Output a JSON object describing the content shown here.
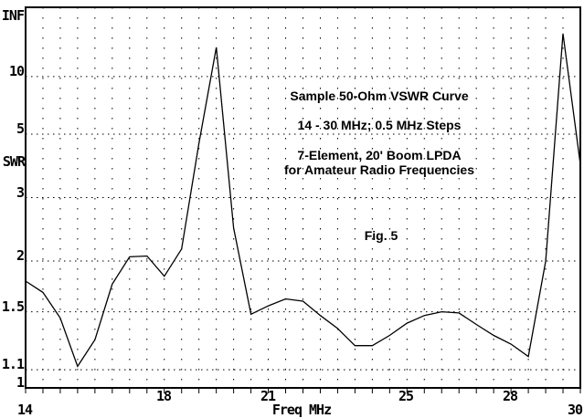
{
  "chart_data": {
    "type": "line",
    "title": "Sample 50-Ohm VSWR Curve",
    "subtitle": "14 - 30 MHz; 0.5 MHz Steps",
    "annotation_line1": "7-Element, 20' Boom LPDA",
    "annotation_line2": "for Amateur Radio Frequencies",
    "fig_label": "Fig. 5",
    "xlabel": "Freq MHz",
    "ylabel": "SWR",
    "grid": "dotted",
    "legend": "none",
    "line_color": "#000000",
    "background_color": "#ffffff",
    "x_axis": {
      "min": 14,
      "max": 30,
      "step": 0.5,
      "minor_tick_step": 0.5,
      "tick_labels": [
        {
          "label": "14",
          "mhz": 14,
          "row": 2
        },
        {
          "label": "18",
          "mhz": 18,
          "row": 1
        },
        {
          "label": "21",
          "mhz": 21,
          "row": 1
        },
        {
          "label": "25",
          "mhz": 25,
          "row": 1
        },
        {
          "label": "28",
          "mhz": 28,
          "row": 1
        },
        {
          "label": "30",
          "mhz": 30,
          "row": 2
        }
      ]
    },
    "y_axis": {
      "scale": "linear in reflection coefficient (S-1)/(S+1)",
      "min": 1,
      "max_label": "INF",
      "ticks": [
        {
          "label": "INF",
          "swr": null
        },
        {
          "label": "10",
          "swr": 10
        },
        {
          "label": "5",
          "swr": 5
        },
        {
          "label": "3",
          "swr": 3
        },
        {
          "label": "2",
          "swr": 2
        },
        {
          "label": "1.5",
          "swr": 1.5
        },
        {
          "label": "1.1",
          "swr": 1.1
        },
        {
          "label": "1",
          "swr": 1
        }
      ],
      "gridline_values": [
        10,
        5,
        3,
        2,
        1.5,
        1.1
      ]
    },
    "x": [
      14,
      14.5,
      15,
      15.5,
      16,
      16.5,
      17,
      17.5,
      18,
      18.5,
      19,
      19.5,
      20,
      20.5,
      21,
      21.5,
      22,
      22.5,
      23,
      23.5,
      24,
      24.5,
      25,
      25.5,
      26,
      26.5,
      27,
      27.5,
      28,
      28.5,
      29,
      29.5,
      30
    ],
    "series": [
      {
        "name": "50-Ohm VSWR",
        "values": [
          1.78,
          1.67,
          1.45,
          1.12,
          1.29,
          1.75,
          2.05,
          2.06,
          1.83,
          2.15,
          4.6,
          18,
          2.45,
          1.48,
          1.55,
          1.61,
          1.59,
          1.47,
          1.37,
          1.25,
          1.25,
          1.32,
          1.41,
          1.47,
          1.5,
          1.49,
          1.4,
          1.32,
          1.26,
          1.18,
          2.0,
          28,
          3.85
        ]
      }
    ]
  }
}
